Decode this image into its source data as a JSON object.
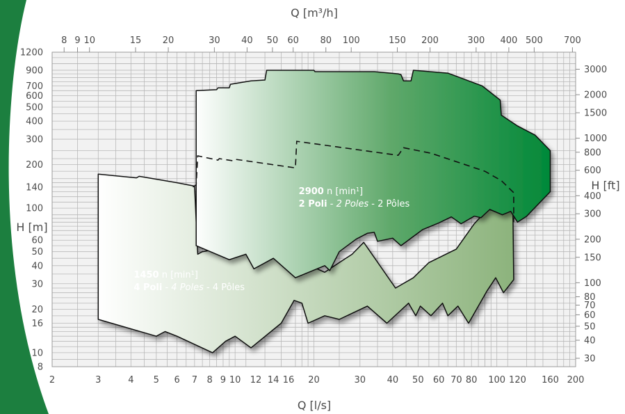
{
  "chart_data": {
    "type": "area",
    "title": "",
    "x_bottom": {
      "label": "Q [l/s]",
      "scale": "log",
      "range": [
        2,
        200
      ],
      "ticks": [
        "2",
        "3",
        "4",
        "5",
        "6",
        "7",
        "8",
        "9",
        "10",
        "12",
        "14",
        "16",
        "20",
        "30",
        "40",
        "50",
        "60",
        "70",
        "80",
        "100",
        "120",
        "160",
        "200"
      ]
    },
    "x_top": {
      "label": "Q [m³/h]",
      "scale": "log",
      "ticks": [
        "8",
        "9",
        "10",
        "15",
        "20",
        "30",
        "40",
        "50",
        "60",
        "80",
        "100",
        "150",
        "200",
        "300",
        "400",
        "500",
        "700"
      ]
    },
    "y_left": {
      "label": "H [m]",
      "scale": "log",
      "range": [
        8,
        1200
      ],
      "ticks": [
        "8",
        "10",
        "16",
        "20",
        "30",
        "40",
        "50",
        "60",
        "100",
        "140",
        "200",
        "300",
        "400",
        "500",
        "600",
        "700",
        "900",
        "1200"
      ]
    },
    "y_right": {
      "label": "H [ft]",
      "scale": "log",
      "ticks": [
        "30",
        "40",
        "50",
        "60",
        "70",
        "80",
        "100",
        "150",
        "200",
        "300",
        "400",
        "600",
        "800",
        "1000",
        "1500",
        "2000",
        "3000"
      ]
    },
    "grid": true,
    "series": [
      {
        "name_lines": [
          "1450 n [min¹]",
          "4 Poli - 4 Poles - 4 Pôles"
        ],
        "label_parts": [
          {
            "text": "1450",
            "style": "b"
          },
          {
            "text": " n [min",
            "style": ""
          },
          {
            "text": "1",
            "style": "sup"
          },
          {
            "text": "]",
            "style": ""
          }
        ],
        "label_parts_2": [
          {
            "text": "4 Poli",
            "style": "b"
          },
          {
            "text": " - ",
            "style": ""
          },
          {
            "text": "4 Poles",
            "style": "i"
          },
          {
            "text": " - 4 Pôles",
            "style": ""
          }
        ],
        "label_at": [
          4.1,
          33
        ],
        "color_from": "#ffffff",
        "color_to": "#8cb37c",
        "envelope": [
          [
            3,
            172
          ],
          [
            4.2,
            162
          ],
          [
            4.3,
            166
          ],
          [
            6,
            150
          ],
          [
            7,
            142
          ],
          [
            7.2,
            48
          ],
          [
            7.5,
            50
          ],
          [
            12,
            58
          ],
          [
            14,
            52
          ],
          [
            22,
            36
          ],
          [
            25,
            42
          ],
          [
            28,
            48
          ],
          [
            31,
            58
          ],
          [
            41,
            28
          ],
          [
            48,
            33
          ],
          [
            55,
            42
          ],
          [
            70,
            52
          ],
          [
            82,
            78
          ],
          [
            92,
            98
          ],
          [
            103,
            95
          ],
          [
            108,
            112
          ],
          [
            115,
            127
          ],
          [
            116,
            32
          ],
          [
            106,
            26
          ],
          [
            99,
            33
          ],
          [
            92,
            27
          ],
          [
            78,
            16
          ],
          [
            71,
            21
          ],
          [
            65,
            18
          ],
          [
            62,
            22
          ],
          [
            56,
            18
          ],
          [
            51,
            21
          ],
          [
            49,
            18
          ],
          [
            46,
            22
          ],
          [
            38,
            16
          ],
          [
            32,
            21
          ],
          [
            25,
            17
          ],
          [
            22,
            18
          ],
          [
            19,
            16
          ],
          [
            18,
            22
          ],
          [
            16.8,
            23
          ],
          [
            15,
            16
          ],
          [
            11.5,
            10.8
          ],
          [
            10,
            13
          ],
          [
            9.2,
            12
          ],
          [
            8.2,
            10
          ],
          [
            6,
            13
          ],
          [
            5.4,
            14
          ],
          [
            5,
            13
          ],
          [
            3,
            17
          ]
        ]
      },
      {
        "name_lines": [
          "2900 n [min¹]",
          "2 Poli - 2 Poles - 2 Pôles"
        ],
        "label_parts": [
          {
            "text": "2900",
            "style": "b"
          },
          {
            "text": " n [min",
            "style": ""
          },
          {
            "text": "1",
            "style": "sup"
          },
          {
            "text": "]",
            "style": ""
          }
        ],
        "label_parts_2": [
          {
            "text": "2 Poli",
            "style": "b"
          },
          {
            "text": " - ",
            "style": ""
          },
          {
            "text": "2 Poles",
            "style": "i"
          },
          {
            "text": " - 2 Pôles",
            "style": ""
          }
        ],
        "label_at": [
          17.5,
          125
        ],
        "color_from": "#ffffff",
        "color_to": "#008838",
        "envelope": [
          [
            7.1,
            650
          ],
          [
            8.5,
            660
          ],
          [
            8.6,
            680
          ],
          [
            9.5,
            680
          ],
          [
            9.6,
            720
          ],
          [
            11.5,
            760
          ],
          [
            13,
            770
          ],
          [
            13.2,
            900
          ],
          [
            20,
            900
          ],
          [
            20.2,
            880
          ],
          [
            34,
            880
          ],
          [
            42,
            850
          ],
          [
            43,
            840
          ],
          [
            44,
            760
          ],
          [
            47,
            760
          ],
          [
            48,
            900
          ],
          [
            65,
            860
          ],
          [
            88,
            700
          ],
          [
            103,
            560
          ],
          [
            104,
            440
          ],
          [
            120,
            370
          ],
          [
            140,
            320
          ],
          [
            160,
            250
          ],
          [
            160,
            130
          ],
          [
            130,
            88
          ],
          [
            120,
            80
          ],
          [
            113,
            95
          ],
          [
            105,
            90
          ],
          [
            94,
            98
          ],
          [
            87,
            86
          ],
          [
            82,
            88
          ],
          [
            73,
            78
          ],
          [
            67,
            87
          ],
          [
            60,
            79
          ],
          [
            52,
            71
          ],
          [
            43,
            55
          ],
          [
            40,
            62
          ],
          [
            35,
            59
          ],
          [
            34,
            68
          ],
          [
            32,
            67
          ],
          [
            29,
            61
          ],
          [
            25,
            50
          ],
          [
            23,
            37
          ],
          [
            22,
            40
          ],
          [
            17,
            33
          ],
          [
            14,
            45
          ],
          [
            11.8,
            38
          ],
          [
            11,
            48
          ],
          [
            9.5,
            44
          ],
          [
            7.1,
            55
          ]
        ]
      }
    ],
    "dashed_curve": [
      [
        6.9,
        140
      ],
      [
        7.1,
        145
      ],
      [
        7.2,
        230
      ],
      [
        8.6,
        215
      ],
      [
        8.7,
        220
      ],
      [
        9.8,
        213
      ],
      [
        10,
        218
      ],
      [
        17,
        190
      ],
      [
        17.2,
        290
      ],
      [
        40,
        235
      ],
      [
        42,
        232
      ],
      [
        44,
        262
      ],
      [
        56,
        240
      ],
      [
        90,
        180
      ],
      [
        104,
        155
      ],
      [
        116,
        128
      ],
      [
        116,
        80
      ]
    ],
    "colors": {
      "grid": "#b8b8b8",
      "plot_bg": "#f2f2f2",
      "outline": "#111111",
      "left_band": "#1c7f3f"
    }
  }
}
